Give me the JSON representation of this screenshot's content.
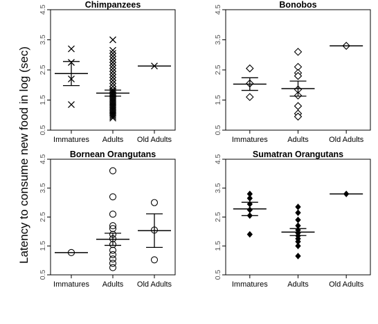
{
  "figure": {
    "ylabel": "Latency to consume new food in log (sec)"
  },
  "chart_data": [
    {
      "type": "scatter",
      "title": "Chimpanzees",
      "marker": "x",
      "categories": [
        "Immatures",
        "Adults",
        "Old Adults"
      ],
      "yticks": [
        "0.5",
        "1.5",
        "2.5",
        "3.5",
        "4.5"
      ],
      "ylim": [
        0.5,
        4.5
      ],
      "points": [
        [
          3.2,
          2.75,
          2.2,
          1.35
        ],
        [
          3.5,
          3.15,
          3.05,
          2.95,
          2.85,
          2.75,
          2.65,
          2.55,
          2.45,
          2.35,
          2.25,
          2.15,
          2.05,
          1.95,
          1.85,
          1.8,
          1.75,
          1.7,
          1.65,
          1.6,
          1.55,
          1.5,
          1.45,
          1.4,
          1.35,
          1.3,
          1.25,
          1.2,
          1.15,
          1.1,
          1.05,
          1.0,
          0.95,
          0.9
        ],
        [
          2.63
        ]
      ],
      "means": [
        2.38,
        1.73,
        2.63
      ],
      "errors": [
        [
          1.98,
          2.78
        ],
        [
          1.63,
          1.83
        ],
        null
      ]
    },
    {
      "type": "scatter",
      "title": "Bonobos",
      "marker": "diamond-open",
      "categories": [
        "Immatures",
        "Adults",
        "Old Adults"
      ],
      "yticks": [
        "0.5",
        "1.5",
        "2.5",
        "3.5",
        "4.5"
      ],
      "ylim": [
        0.5,
        4.5
      ],
      "points": [
        [
          2.55,
          2.05,
          1.6
        ],
        [
          3.1,
          2.6,
          2.4,
          2.3,
          1.85,
          1.65,
          1.3,
          1.05,
          0.95
        ],
        [
          3.3
        ]
      ],
      "means": [
        2.03,
        1.88,
        3.3
      ],
      "errors": [
        [
          1.82,
          2.24
        ],
        [
          1.63,
          2.13
        ],
        null
      ]
    },
    {
      "type": "scatter",
      "title": "Bornean Orangutans",
      "marker": "circle-open",
      "categories": [
        "Immatures",
        "Adults",
        "Old Adults"
      ],
      "yticks": [
        "0.5",
        "1.5",
        "2.5",
        "3.5",
        "4.5"
      ],
      "ylim": [
        0.5,
        4.5
      ],
      "points": [
        [
          1.27
        ],
        [
          4.1,
          3.2,
          2.6,
          2.2,
          2.1,
          1.9,
          1.75,
          1.55,
          1.35,
          1.2,
          1.05,
          0.9,
          0.75
        ],
        [
          3.0,
          2.05,
          1.02
        ]
      ],
      "means": [
        1.27,
        1.73,
        2.03
      ],
      "errors": [
        null,
        [
          1.52,
          1.94
        ],
        [
          1.45,
          2.61
        ]
      ]
    },
    {
      "type": "scatter",
      "title": "Sumatran Orangutans",
      "marker": "diamond-filled",
      "categories": [
        "Immatures",
        "Adults",
        "Old Adults"
      ],
      "yticks": [
        "0.5",
        "1.5",
        "2.5",
        "3.5",
        "4.5"
      ],
      "ylim": [
        0.5,
        4.5
      ],
      "points": [
        [
          3.3,
          3.15,
          2.95,
          2.75,
          2.55,
          1.9
        ],
        [
          2.85,
          2.65,
          2.4,
          2.2,
          2.05,
          1.95,
          1.85,
          1.75,
          1.65,
          1.5,
          1.15
        ],
        [
          3.3
        ]
      ],
      "means": [
        2.78,
        1.98,
        3.3
      ],
      "errors": [
        [
          2.55,
          3.01
        ],
        [
          1.86,
          2.1
        ],
        null
      ]
    }
  ]
}
